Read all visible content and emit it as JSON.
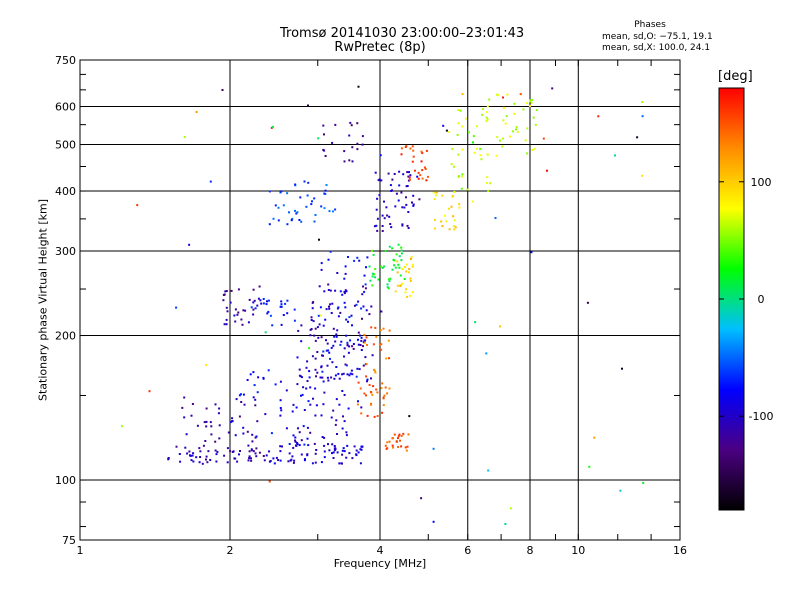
{
  "chart_data": {
    "type": "scatter",
    "title": "Tromsø 20141030 23:00:00–23:01:43",
    "subtitle": "RwPretec (8p)",
    "xlabel": "Frequency [MHz]",
    "ylabel": "Stationary phase Virtual Height [km]",
    "x_scale": "log",
    "y_scale": "log",
    "xlim": [
      1,
      16
    ],
    "ylim": [
      75,
      750
    ],
    "xticks": [
      1,
      2,
      4,
      6,
      8,
      10,
      16
    ],
    "yticks": [
      75,
      100,
      200,
      300,
      400,
      500,
      600,
      750
    ],
    "grid": true,
    "stats": {
      "title": "Phases",
      "o_line": "mean, sd,O: −75.1, 19.1",
      "x_line": "mean, sd,X: 100.0, 24.1"
    },
    "colorbar": {
      "unit": "[deg]",
      "range": [
        -180,
        180
      ],
      "ticks": [
        100,
        0,
        -100
      ],
      "colors": [
        "#000000",
        "#4b0082",
        "#0000ff",
        "#00bfff",
        "#00ff00",
        "#ffff00",
        "#ff8c00",
        "#ff0000"
      ]
    },
    "clusters": [
      {
        "fmin": 1.5,
        "fmax": 2.4,
        "hmin": 108,
        "hmax": 118,
        "phase": -110,
        "n": 60
      },
      {
        "fmin": 2.4,
        "fmax": 3.7,
        "hmin": 108,
        "hmax": 120,
        "phase": -95,
        "n": 70
      },
      {
        "fmin": 1.6,
        "fmax": 2.3,
        "hmin": 118,
        "hmax": 150,
        "phase": -115,
        "n": 35
      },
      {
        "fmin": 2.0,
        "fmax": 2.9,
        "hmin": 118,
        "hmax": 170,
        "phase": -85,
        "n": 45
      },
      {
        "fmin": 2.7,
        "fmax": 3.5,
        "hmin": 120,
        "hmax": 220,
        "phase": -100,
        "n": 70
      },
      {
        "fmin": 3.0,
        "fmax": 3.8,
        "hmin": 140,
        "hmax": 300,
        "phase": -80,
        "n": 80
      },
      {
        "fmin": 2.9,
        "fmax": 3.9,
        "hmin": 160,
        "hmax": 260,
        "phase": -110,
        "n": 60
      },
      {
        "fmin": 1.9,
        "fmax": 2.3,
        "hmin": 210,
        "hmax": 250,
        "phase": -115,
        "n": 30
      },
      {
        "fmin": 2.2,
        "fmax": 2.7,
        "hmin": 210,
        "hmax": 240,
        "phase": -75,
        "n": 25
      },
      {
        "fmin": 2.4,
        "fmax": 3.3,
        "hmin": 340,
        "hmax": 420,
        "phase": -60,
        "n": 40
      },
      {
        "fmin": 3.0,
        "fmax": 3.7,
        "hmin": 460,
        "hmax": 560,
        "phase": -120,
        "n": 20
      },
      {
        "fmin": 3.7,
        "fmax": 4.2,
        "hmin": 150,
        "hmax": 210,
        "phase": 140,
        "n": 30
      },
      {
        "fmin": 3.6,
        "fmax": 4.1,
        "hmin": 135,
        "hmax": 160,
        "phase": 150,
        "n": 20
      },
      {
        "fmin": 4.1,
        "fmax": 4.6,
        "hmin": 115,
        "hmax": 125,
        "phase": 150,
        "n": 25
      },
      {
        "fmin": 3.8,
        "fmax": 4.5,
        "hmin": 250,
        "hmax": 310,
        "phase": 20,
        "n": 40
      },
      {
        "fmin": 4.3,
        "fmax": 4.7,
        "hmin": 240,
        "hmax": 300,
        "phase": 95,
        "n": 25
      },
      {
        "fmin": 3.9,
        "fmax": 4.8,
        "hmin": 330,
        "hmax": 440,
        "phase": -105,
        "n": 55
      },
      {
        "fmin": 4.4,
        "fmax": 5.0,
        "hmin": 420,
        "hmax": 500,
        "phase": 160,
        "n": 25
      },
      {
        "fmin": 5.1,
        "fmax": 5.8,
        "hmin": 330,
        "hmax": 400,
        "phase": 90,
        "n": 25
      },
      {
        "fmin": 5.5,
        "fmax": 6.6,
        "hmin": 380,
        "hmax": 600,
        "phase": 60,
        "n": 35
      },
      {
        "fmin": 6.4,
        "fmax": 8.3,
        "hmin": 460,
        "hmax": 640,
        "phase": 70,
        "n": 40
      },
      {
        "fmin": 1.2,
        "fmax": 15,
        "hmin": 78,
        "hmax": 700,
        "phase": 0,
        "n": 60,
        "random": true
      }
    ]
  }
}
